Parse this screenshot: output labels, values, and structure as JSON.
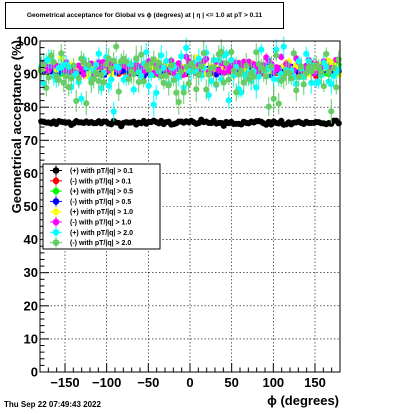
{
  "chart_data": {
    "type": "scatter",
    "title": "Geometrical acceptance for Global vs ϕ (degrees) at | η | <= 1.0 at pT > 0.11",
    "xlabel": "ϕ (degrees)",
    "ylabel": "Geometrical acceptance (%)",
    "xlim": [
      -180,
      180
    ],
    "ylim": [
      0,
      100
    ],
    "x_ticks": [
      -150,
      -100,
      -50,
      0,
      50,
      100,
      150
    ],
    "y_ticks": [
      0,
      10,
      20,
      30,
      40,
      50,
      60,
      70,
      80,
      90,
      100
    ],
    "x_tick_labels": [
      "−150",
      "−100",
      "−50",
      "0",
      "50",
      "100",
      "150"
    ],
    "y_tick_labels": [
      "0",
      "10",
      "20",
      "30",
      "40",
      "50",
      "60",
      "70",
      "80",
      "90",
      "100"
    ],
    "grid": true,
    "legend_position": "left-middle",
    "bins": 120,
    "bin_width_deg": 3,
    "series": [
      {
        "name": "(+) with pT/|q| > 0.1",
        "color": "#000000",
        "level": 75.3,
        "noise": 0.4,
        "errbar": 0.3
      },
      {
        "name": "(-) with pT/|q| > 0.1",
        "color": "#ff0000",
        "level": 90.8,
        "noise": 0.5,
        "errbar": 0.4
      },
      {
        "name": "(+) with pT/|q| > 0.5",
        "color": "#00ff00",
        "level": 91.3,
        "noise": 0.7,
        "errbar": 0.6
      },
      {
        "name": "(-) with pT/|q| > 0.5",
        "color": "#0000ff",
        "level": 91.0,
        "noise": 0.7,
        "errbar": 0.6
      },
      {
        "name": "(+) with pT/|q| > 1.0",
        "color": "#ffff00",
        "level": 91.8,
        "noise": 1.2,
        "errbar": 1.0
      },
      {
        "name": "(-) with pT/|q| > 1.0",
        "color": "#ff00ff",
        "level": 92.2,
        "noise": 1.3,
        "errbar": 1.0
      },
      {
        "name": "(+) with pT/|q| > 2.0",
        "color": "#00ffff",
        "level": 91.5,
        "noise": 3.0,
        "errbar": 2.5
      },
      {
        "name": "(-) with pT/|q| > 2.0",
        "color": "#66cc66",
        "level": 91.0,
        "noise": 3.2,
        "errbar": 2.8
      }
    ],
    "timestamp": "Thu Sep 22 07:49:43 2022"
  }
}
